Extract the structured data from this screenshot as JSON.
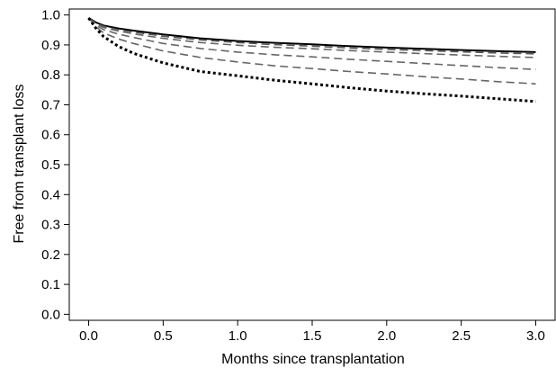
{
  "chart_data": {
    "type": "line",
    "title": "",
    "xlabel": "Months since transplantation",
    "ylabel": "Free from transplant loss",
    "xlim": [
      -0.13,
      3.13
    ],
    "ylim": [
      -0.02,
      1.02
    ],
    "x_ticks": [
      0.0,
      0.5,
      1.0,
      1.5,
      2.0,
      2.5,
      3.0
    ],
    "x_tick_labels": [
      "0.0",
      "0.5",
      "1.0",
      "1.5",
      "2.0",
      "2.5",
      "3.0"
    ],
    "y_ticks": [
      0.0,
      0.1,
      0.2,
      0.3,
      0.4,
      0.5,
      0.6,
      0.7,
      0.8,
      0.9,
      1.0
    ],
    "y_tick_labels": [
      "0.0",
      "0.1",
      "0.2",
      "0.3",
      "0.4",
      "0.5",
      "0.6",
      "0.7",
      "0.8",
      "0.9",
      "1.0"
    ],
    "grid": false,
    "legend": "none",
    "x": [
      0.0,
      0.05,
      0.1,
      0.2,
      0.3,
      0.5,
      0.75,
      1.0,
      1.25,
      1.5,
      1.75,
      2.0,
      2.25,
      2.5,
      2.75,
      3.0
    ],
    "series": [
      {
        "style": "solid",
        "color": "#000000",
        "values": [
          0.99,
          0.975,
          0.965,
          0.955,
          0.948,
          0.935,
          0.922,
          0.913,
          0.907,
          0.902,
          0.896,
          0.891,
          0.887,
          0.883,
          0.879,
          0.876
        ]
      },
      {
        "style": "dashed",
        "color": "#555555",
        "values": [
          0.99,
          0.972,
          0.962,
          0.951,
          0.943,
          0.929,
          0.917,
          0.908,
          0.901,
          0.896,
          0.89,
          0.885,
          0.881,
          0.877,
          0.873,
          0.87
        ]
      },
      {
        "style": "dashed",
        "color": "#666666",
        "values": [
          0.99,
          0.97,
          0.958,
          0.946,
          0.937,
          0.922,
          0.908,
          0.899,
          0.892,
          0.887,
          0.881,
          0.876,
          0.871,
          0.866,
          0.862,
          0.858
        ]
      },
      {
        "style": "dashed",
        "color": "#666666",
        "values": [
          0.99,
          0.966,
          0.951,
          0.936,
          0.925,
          0.905,
          0.888,
          0.876,
          0.867,
          0.86,
          0.852,
          0.845,
          0.838,
          0.831,
          0.824,
          0.818
        ]
      },
      {
        "style": "dashed",
        "color": "#666666",
        "values": [
          0.99,
          0.96,
          0.94,
          0.92,
          0.905,
          0.88,
          0.858,
          0.843,
          0.83,
          0.821,
          0.811,
          0.803,
          0.794,
          0.786,
          0.777,
          0.77
        ]
      },
      {
        "style": "dotted",
        "color": "#000000",
        "values": [
          0.99,
          0.955,
          0.928,
          0.895,
          0.872,
          0.84,
          0.811,
          0.797,
          0.782,
          0.77,
          0.757,
          0.746,
          0.737,
          0.729,
          0.72,
          0.711
        ]
      }
    ]
  }
}
